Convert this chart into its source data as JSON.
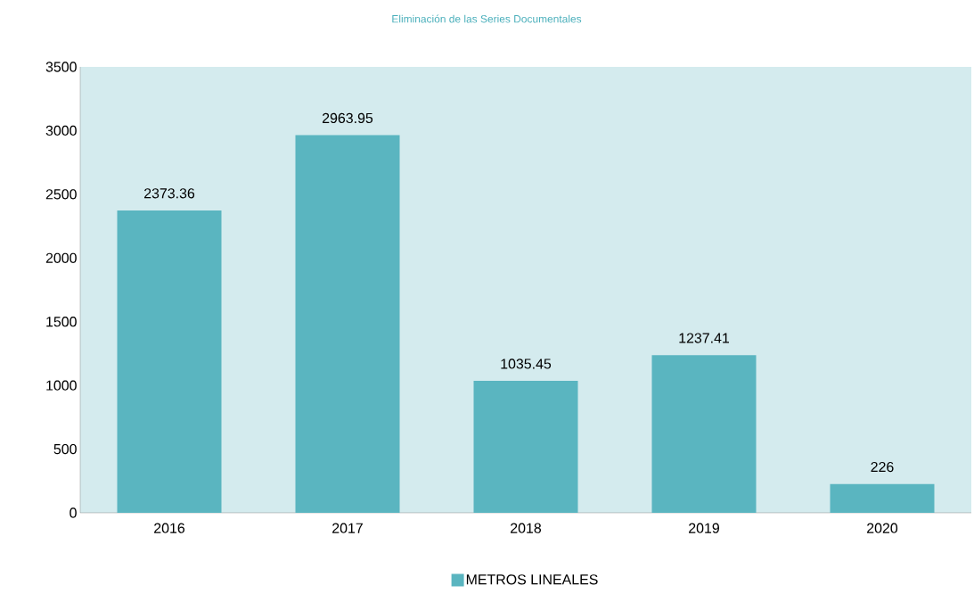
{
  "chart_data": {
    "type": "bar",
    "title": "Eliminación de las Series Documentales",
    "categories": [
      "2016",
      "2017",
      "2018",
      "2019",
      "2020"
    ],
    "series": [
      {
        "name": "METROS LINEALES",
        "color": "#5ab5c0",
        "values": [
          2373.36,
          2963.95,
          1035.45,
          1237.41,
          226
        ]
      }
    ],
    "ylim": [
      0,
      3500
    ],
    "yticks": [
      0,
      500,
      1000,
      1500,
      2000,
      2500,
      3000,
      3500
    ],
    "data_labels": true,
    "legend": "bottom",
    "grid": false
  }
}
